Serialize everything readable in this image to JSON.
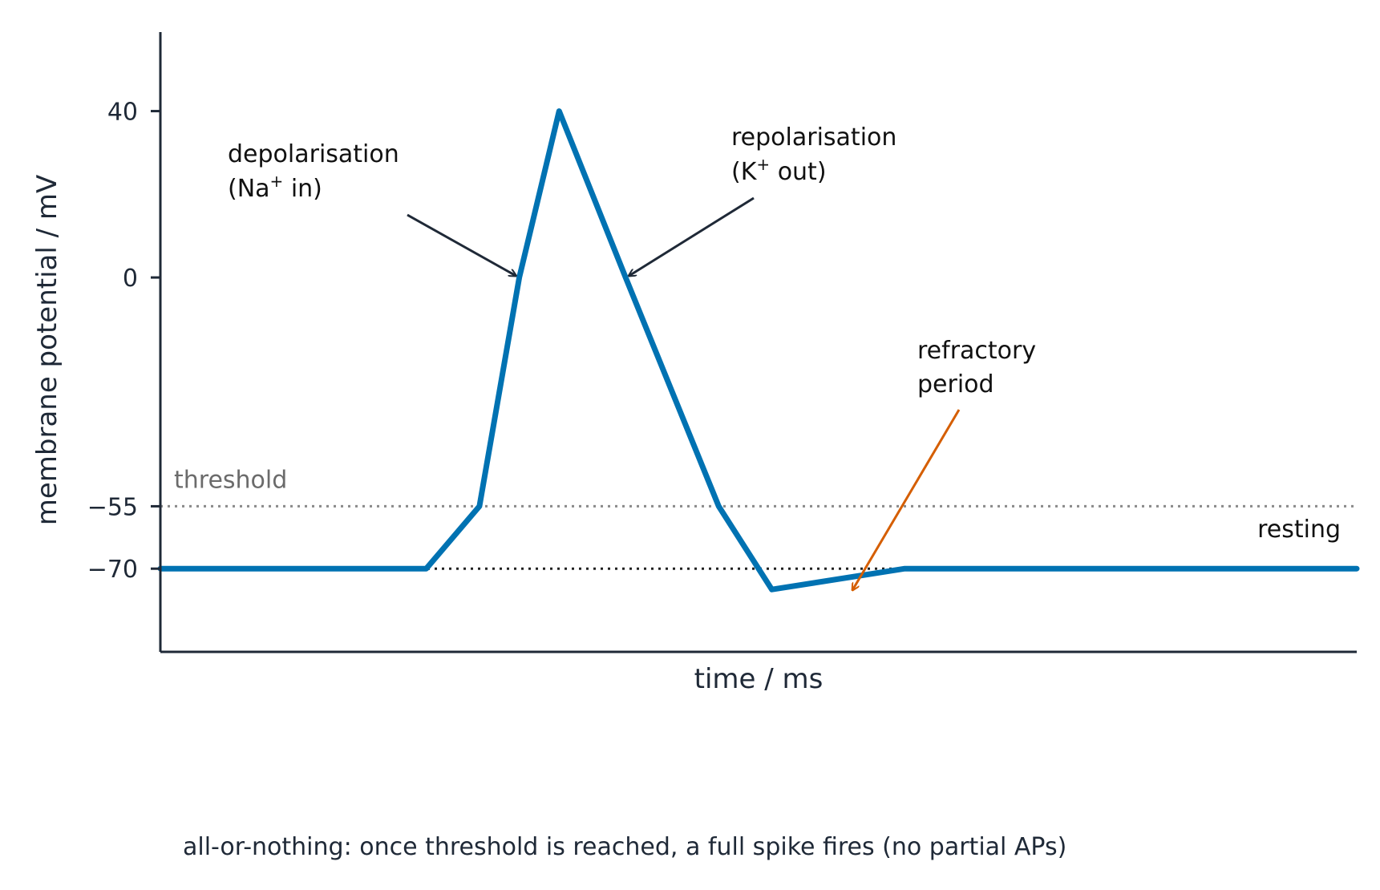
{
  "chart_data": {
    "type": "line",
    "xlabel": "time / ms",
    "ylabel": "membrane potential / mV",
    "ylim": [
      -90,
      59
    ],
    "xlim": [
      0,
      9
    ],
    "y_ticks": [
      {
        "value": 40,
        "label": "40"
      },
      {
        "value": 0,
        "label": "0"
      },
      {
        "value": -55,
        "label": "−55"
      },
      {
        "value": -70,
        "label": "−70"
      }
    ],
    "x_ticks": [],
    "grid": false,
    "series": [
      {
        "color": "#0072B2",
        "x": [
          0,
          2.0,
          2.4,
          2.7,
          3.0,
          3.5,
          4.2,
          4.6,
          5.6,
          7.0,
          9.0
        ],
        "y": [
          -70,
          -70,
          -55,
          0,
          40,
          0,
          -55,
          -75,
          -70,
          -70,
          -70
        ]
      }
    ],
    "reference_lines": [
      {
        "y": -55,
        "label": "threshold",
        "color": "#8a8a8a",
        "style": "dotted"
      },
      {
        "y": -70,
        "label": "resting",
        "color": "#222222",
        "style": "dotted"
      }
    ],
    "annotations": [
      {
        "name": "depolarisation",
        "line1": "depolarisation",
        "line2_pre": "(Na",
        "sup": "+",
        "line2_post": " in)",
        "target": [
          2.7,
          0
        ],
        "color": "#1f2937"
      },
      {
        "name": "repolarisation",
        "line1": "repolarisation",
        "line2_pre": "(K",
        "sup": "+",
        "line2_post": " out)",
        "target": [
          3.5,
          0
        ],
        "color": "#1f2937"
      },
      {
        "name": "refractory",
        "line1": "refractory",
        "line2": "period",
        "target": [
          5.2,
          -74.8
        ],
        "color": "#D55E00"
      }
    ],
    "caption": "all-or-nothing: once threshold is reached, a full spike fires (no partial APs)"
  }
}
